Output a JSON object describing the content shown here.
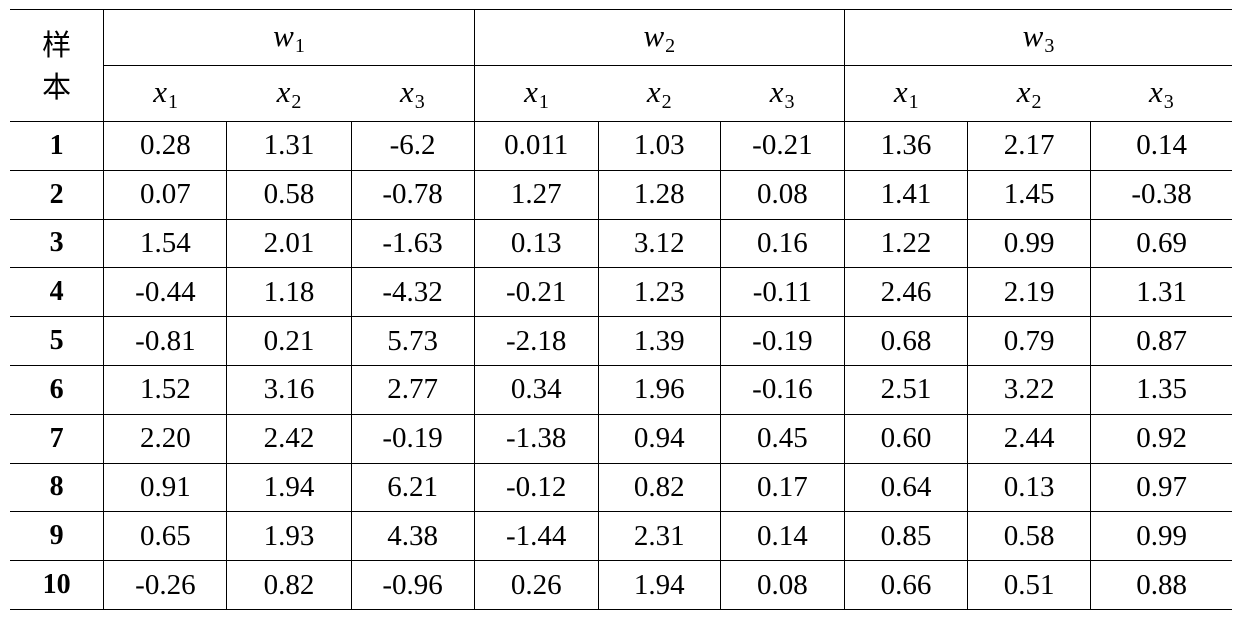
{
  "table": {
    "sample_label_line1": "样",
    "sample_label_line2": "本",
    "groups": [
      {
        "var": "w",
        "sub": "1"
      },
      {
        "var": "w",
        "sub": "2"
      },
      {
        "var": "w",
        "sub": "3"
      }
    ],
    "columns": [
      {
        "var": "x",
        "sub": "1"
      },
      {
        "var": "x",
        "sub": "2"
      },
      {
        "var": "x",
        "sub": "3"
      }
    ],
    "rows": [
      {
        "id": "1",
        "values": [
          "0.28",
          "1.31",
          "-6.2",
          "0.011",
          "1.03",
          "-0.21",
          "1.36",
          "2.17",
          "0.14"
        ]
      },
      {
        "id": "2",
        "values": [
          "0.07",
          "0.58",
          "-0.78",
          "1.27",
          "1.28",
          "0.08",
          "1.41",
          "1.45",
          "-0.38"
        ]
      },
      {
        "id": "3",
        "values": [
          "1.54",
          "2.01",
          "-1.63",
          "0.13",
          "3.12",
          "0.16",
          "1.22",
          "0.99",
          "0.69"
        ]
      },
      {
        "id": "4",
        "values": [
          "-0.44",
          "1.18",
          "-4.32",
          "-0.21",
          "1.23",
          "-0.11",
          "2.46",
          "2.19",
          "1.31"
        ]
      },
      {
        "id": "5",
        "values": [
          "-0.81",
          "0.21",
          "5.73",
          "-2.18",
          "1.39",
          "-0.19",
          "0.68",
          "0.79",
          "0.87"
        ]
      },
      {
        "id": "6",
        "values": [
          "1.52",
          "3.16",
          "2.77",
          "0.34",
          "1.96",
          "-0.16",
          "2.51",
          "3.22",
          "1.35"
        ]
      },
      {
        "id": "7",
        "values": [
          "2.20",
          "2.42",
          "-0.19",
          "-1.38",
          "0.94",
          "0.45",
          "0.60",
          "2.44",
          "0.92"
        ]
      },
      {
        "id": "8",
        "values": [
          "0.91",
          "1.94",
          "6.21",
          "-0.12",
          "0.82",
          "0.17",
          "0.64",
          "0.13",
          "0.97"
        ]
      },
      {
        "id": "9",
        "values": [
          "0.65",
          "1.93",
          "4.38",
          "-1.44",
          "2.31",
          "0.14",
          "0.85",
          "0.58",
          "0.99"
        ]
      },
      {
        "id": "10",
        "values": [
          "-0.26",
          "0.82",
          "-0.96",
          "0.26",
          "1.94",
          "0.08",
          "0.66",
          "0.51",
          "0.88"
        ]
      }
    ]
  }
}
